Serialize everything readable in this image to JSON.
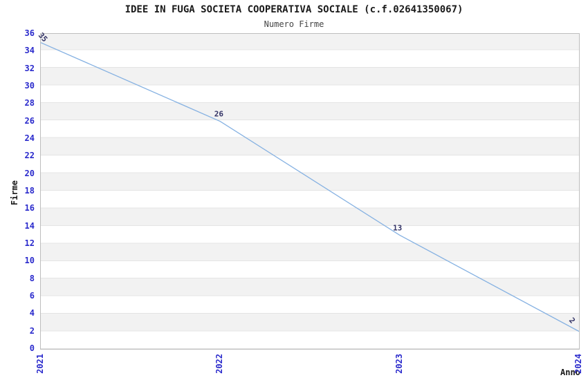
{
  "chart_data": {
    "type": "line",
    "title": "IDEE IN FUGA SOCIETA COOPERATIVA SOCIALE (c.f.02641350067)",
    "subtitle": "Numero Firme",
    "xlabel": "Anno",
    "ylabel": "Firme",
    "categories": [
      "2021",
      "2022",
      "2023",
      "2024"
    ],
    "series": [
      {
        "name": "Numero Firme",
        "values": [
          35,
          26,
          13,
          2
        ]
      }
    ],
    "point_labels": [
      "35",
      "26",
      "13",
      "2"
    ],
    "ylim": [
      0,
      36
    ],
    "ytick_step": 2,
    "legend": "none",
    "grid": "horizontal alternating bands every 2 units",
    "colors": {
      "line": "#85b1e2",
      "tick_label": "#2a2acc",
      "point_label": "#333366",
      "band_gray": "#f2f2f2",
      "band_white": "#ffffff",
      "grid_line": "#e4e4e4",
      "plot_border": "#bdbdbd",
      "title_text": "#1a1a1a"
    }
  }
}
